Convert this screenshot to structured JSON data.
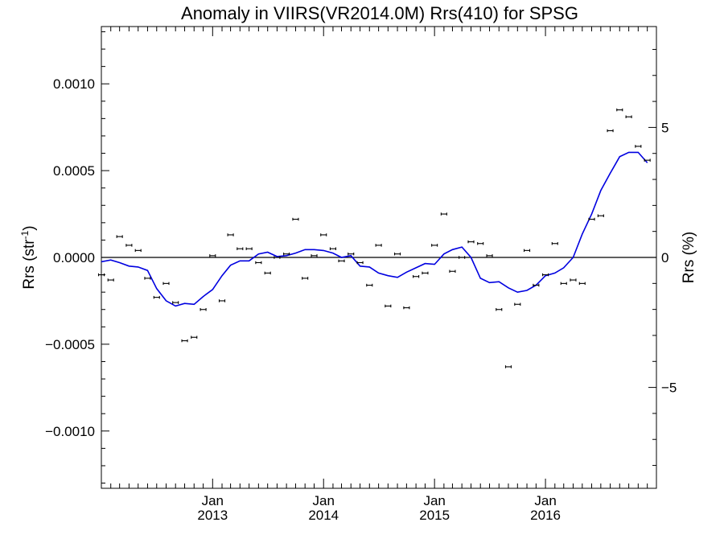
{
  "chart_data": {
    "type": "scatter",
    "title": "Anomaly in VIIRS(VR2014.0M) Rrs(410) for SPSG",
    "ylabel_left": {
      "base": "Rrs (str",
      "sup": "-1",
      "tail": ")"
    },
    "ylabel_right": "Rrs (%)",
    "xlim": [
      "2012-01-01",
      "2016-12-31"
    ],
    "ylim_left": [
      -0.00133,
      0.00133
    ],
    "ylim_right": [
      -8.88,
      8.88
    ],
    "x_ticks": [
      {
        "date": "2013-01-01",
        "month": "Jan",
        "year": "2013"
      },
      {
        "date": "2014-01-01",
        "month": "Jan",
        "year": "2014"
      },
      {
        "date": "2015-01-01",
        "month": "Jan",
        "year": "2015"
      },
      {
        "date": "2016-01-01",
        "month": "Jan",
        "year": "2016"
      }
    ],
    "y_ticks_left": [
      {
        "value": 0.001,
        "label": "0.0010"
      },
      {
        "value": 0.0005,
        "label": "0.0005"
      },
      {
        "value": 0.0,
        "label": "0.0000"
      },
      {
        "value": -0.0005,
        "label": "−0.0005"
      },
      {
        "value": -0.001,
        "label": "−0.0010"
      }
    ],
    "y_ticks_right": [
      {
        "value": 5,
        "label": "5"
      },
      {
        "value": 0,
        "label": "0"
      },
      {
        "value": -5,
        "label": "−5"
      }
    ],
    "zero_line": 0,
    "series": [
      {
        "kind": "points_with_errorbars",
        "color": "#000000",
        "points": [
          [
            "2012-01-01",
            -0.0001
          ],
          [
            "2012-02-01",
            -0.00013
          ],
          [
            "2012-03-01",
            0.00012
          ],
          [
            "2012-04-01",
            7e-05
          ],
          [
            "2012-05-01",
            4e-05
          ],
          [
            "2012-06-01",
            -0.00012
          ],
          [
            "2012-07-01",
            -0.00023
          ],
          [
            "2012-08-01",
            -0.00015
          ],
          [
            "2012-09-01",
            -0.00026
          ],
          [
            "2012-10-01",
            -0.00048
          ],
          [
            "2012-11-01",
            -0.00046
          ],
          [
            "2012-12-01",
            -0.0003
          ],
          [
            "2013-01-01",
            1e-05
          ],
          [
            "2013-02-01",
            -0.00025
          ],
          [
            "2013-03-01",
            0.00013
          ],
          [
            "2013-04-01",
            5e-05
          ],
          [
            "2013-05-01",
            5e-05
          ],
          [
            "2013-06-01",
            -3e-05
          ],
          [
            "2013-07-01",
            -9e-05
          ],
          [
            "2013-08-01",
            0.0
          ],
          [
            "2013-09-01",
            2e-05
          ],
          [
            "2013-10-01",
            0.00022
          ],
          [
            "2013-11-01",
            -0.00012
          ],
          [
            "2013-12-01",
            1e-05
          ],
          [
            "2014-01-01",
            0.00013
          ],
          [
            "2014-02-01",
            5e-05
          ],
          [
            "2014-03-01",
            -2e-05
          ],
          [
            "2014-04-01",
            2e-05
          ],
          [
            "2014-05-01",
            -3e-05
          ],
          [
            "2014-06-01",
            -0.00016
          ],
          [
            "2014-07-01",
            7e-05
          ],
          [
            "2014-08-01",
            -0.00028
          ],
          [
            "2014-09-01",
            2e-05
          ],
          [
            "2014-10-01",
            -0.00029
          ],
          [
            "2014-11-01",
            -0.00011
          ],
          [
            "2014-12-01",
            -9e-05
          ],
          [
            "2015-01-01",
            7e-05
          ],
          [
            "2015-02-01",
            0.00025
          ],
          [
            "2015-03-01",
            -8e-05
          ],
          [
            "2015-04-01",
            0.0
          ],
          [
            "2015-05-01",
            9e-05
          ],
          [
            "2015-06-01",
            8e-05
          ],
          [
            "2015-07-01",
            1e-05
          ],
          [
            "2015-08-01",
            -0.0003
          ],
          [
            "2015-09-01",
            -0.00063
          ],
          [
            "2015-10-01",
            -0.00027
          ],
          [
            "2015-11-01",
            4e-05
          ],
          [
            "2015-12-01",
            -0.00016
          ],
          [
            "2016-01-01",
            -0.0001
          ],
          [
            "2016-02-01",
            8e-05
          ],
          [
            "2016-03-01",
            -0.00015
          ],
          [
            "2016-04-01",
            -0.00013
          ],
          [
            "2016-05-01",
            -0.00015
          ],
          [
            "2016-06-01",
            0.00022
          ],
          [
            "2016-07-01",
            0.00024
          ],
          [
            "2016-08-01",
            0.00073
          ],
          [
            "2016-09-01",
            0.00085
          ],
          [
            "2016-10-01",
            0.00081
          ],
          [
            "2016-11-01",
            0.00064
          ],
          [
            "2016-12-01",
            0.00056
          ]
        ],
        "errorbar_halfwidth": 8e-06
      },
      {
        "kind": "line",
        "color": "#0000e0",
        "points": [
          [
            "2012-01-01",
            -2.5e-05
          ],
          [
            "2012-02-01",
            -1.5e-05
          ],
          [
            "2012-03-01",
            -3e-05
          ],
          [
            "2012-04-01",
            -5e-05
          ],
          [
            "2012-05-01",
            -5.5e-05
          ],
          [
            "2012-06-01",
            -7.5e-05
          ],
          [
            "2012-07-01",
            -0.00018
          ],
          [
            "2012-08-01",
            -0.00025
          ],
          [
            "2012-09-01",
            -0.00028
          ],
          [
            "2012-10-01",
            -0.000265
          ],
          [
            "2012-11-01",
            -0.00027
          ],
          [
            "2012-12-01",
            -0.000225
          ],
          [
            "2013-01-01",
            -0.000185
          ],
          [
            "2013-02-01",
            -0.000105
          ],
          [
            "2013-03-01",
            -4.5e-05
          ],
          [
            "2013-04-01",
            -2e-05
          ],
          [
            "2013-05-01",
            -2e-05
          ],
          [
            "2013-06-01",
            2e-05
          ],
          [
            "2013-07-01",
            3e-05
          ],
          [
            "2013-08-01",
            5e-06
          ],
          [
            "2013-09-01",
            1e-05
          ],
          [
            "2013-10-01",
            2.5e-05
          ],
          [
            "2013-11-01",
            4.5e-05
          ],
          [
            "2013-12-01",
            4.5e-05
          ],
          [
            "2014-01-01",
            4e-05
          ],
          [
            "2014-02-01",
            2.5e-05
          ],
          [
            "2014-03-01",
            0.0
          ],
          [
            "2014-04-01",
            1e-05
          ],
          [
            "2014-05-01",
            -5e-05
          ],
          [
            "2014-06-01",
            -5.5e-05
          ],
          [
            "2014-07-01",
            -9e-05
          ],
          [
            "2014-08-01",
            -0.000105
          ],
          [
            "2014-09-01",
            -0.000115
          ],
          [
            "2014-10-01",
            -8.5e-05
          ],
          [
            "2014-11-01",
            -6e-05
          ],
          [
            "2014-12-01",
            -3.5e-05
          ],
          [
            "2015-01-01",
            -4e-05
          ],
          [
            "2015-02-01",
            2e-05
          ],
          [
            "2015-03-01",
            4.5e-05
          ],
          [
            "2015-04-01",
            6e-05
          ],
          [
            "2015-05-01",
            0.0
          ],
          [
            "2015-06-01",
            -0.00012
          ],
          [
            "2015-07-01",
            -0.000145
          ],
          [
            "2015-08-01",
            -0.00014
          ],
          [
            "2015-09-01",
            -0.000175
          ],
          [
            "2015-10-01",
            -0.0002
          ],
          [
            "2015-11-01",
            -0.00019
          ],
          [
            "2015-12-01",
            -0.00016
          ],
          [
            "2016-01-01",
            -0.000105
          ],
          [
            "2016-02-01",
            -9e-05
          ],
          [
            "2016-03-01",
            -6e-05
          ],
          [
            "2016-04-01",
            0.0
          ],
          [
            "2016-05-01",
            0.000135
          ],
          [
            "2016-06-01",
            0.00025
          ],
          [
            "2016-07-01",
            0.000385
          ],
          [
            "2016-08-01",
            0.000485
          ],
          [
            "2016-09-01",
            0.00058
          ],
          [
            "2016-10-01",
            0.000605
          ],
          [
            "2016-11-01",
            0.000605
          ],
          [
            "2016-12-01",
            0.000545
          ]
        ]
      }
    ]
  }
}
